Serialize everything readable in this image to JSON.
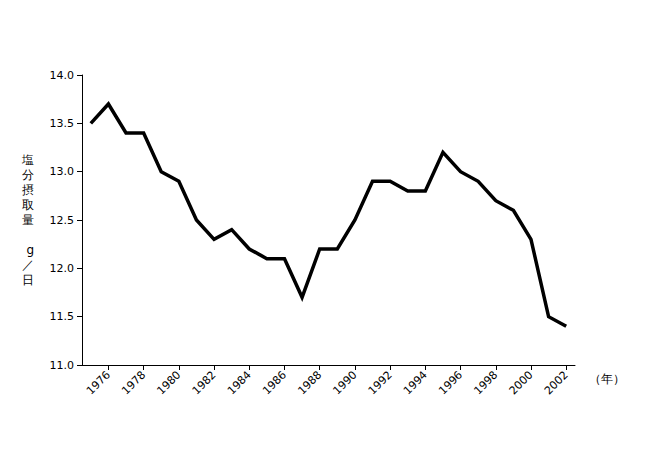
{
  "chart_data": {
    "type": "line",
    "y_label": "塩分摂取量　g／日",
    "x_label": "（年）",
    "categories": [
      null,
      "1976",
      null,
      "1978",
      null,
      "1980",
      null,
      "1982",
      null,
      "1984",
      null,
      "1986",
      null,
      "1988",
      null,
      "1990",
      null,
      "1992",
      null,
      "1994",
      null,
      "1996",
      null,
      "1998",
      null,
      "2000",
      null,
      "2002"
    ],
    "values": [
      13.5,
      13.7,
      13.4,
      13.4,
      13.0,
      12.9,
      12.5,
      12.3,
      12.4,
      12.2,
      12.1,
      12.1,
      11.7,
      12.2,
      12.2,
      12.5,
      12.9,
      12.9,
      12.8,
      12.8,
      13.2,
      13.0,
      12.9,
      12.7,
      12.6,
      12.3,
      11.5,
      11.4
    ],
    "color": "#000000",
    "ylim": [
      11,
      14
    ],
    "yticks": [
      {
        "value": 11,
        "label": "11.0"
      },
      {
        "value": 11.5,
        "label": "11.5"
      },
      {
        "value": 12,
        "label": "12.0"
      },
      {
        "value": 12.5,
        "label": "12.5"
      },
      {
        "value": 13,
        "label": "13.0"
      },
      {
        "value": 13.5,
        "label": "13.5"
      },
      {
        "value": 14,
        "label": "14.0"
      }
    ],
    "grid": false
  }
}
